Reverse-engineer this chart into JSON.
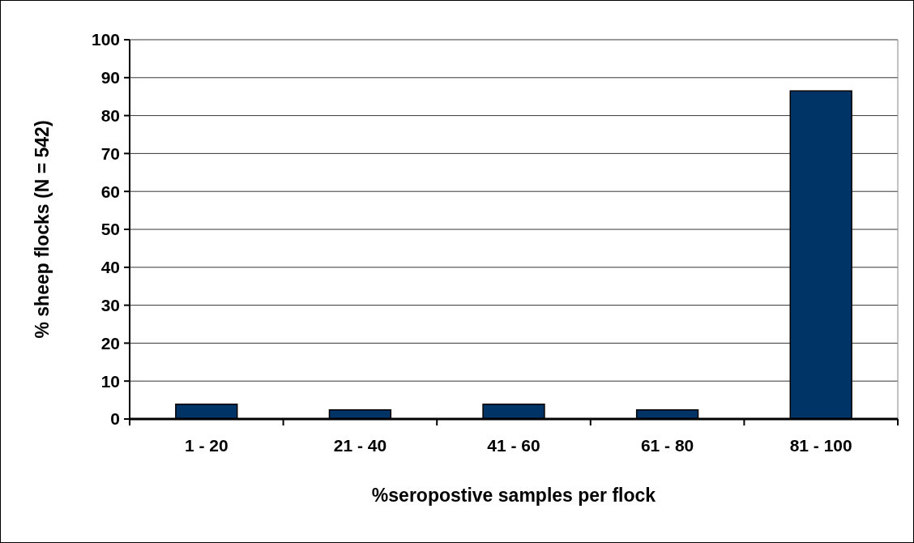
{
  "chart_data": {
    "type": "bar",
    "xlabel": "%seropostive samples per flock",
    "ylabel": "% sheep flocks (N = 542)",
    "categories": [
      "1 - 20",
      "21 - 40",
      "41 - 60",
      "61 - 80",
      "81 - 100"
    ],
    "values": [
      3.9,
      2.4,
      3.9,
      2.4,
      86.5
    ],
    "color": "#003366",
    "ylim": [
      0,
      100
    ],
    "yticks": [
      0,
      10,
      20,
      30,
      40,
      50,
      60,
      70,
      80,
      90,
      100
    ],
    "grid": "y"
  }
}
